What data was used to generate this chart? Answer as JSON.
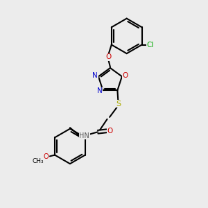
{
  "bg_color": "#ececec",
  "bond_color": "#000000",
  "N_color": "#0000cc",
  "O_color": "#cc0000",
  "S_color": "#aaaa00",
  "Cl_color": "#00aa00",
  "H_color": "#555555",
  "figsize": [
    3.0,
    3.0
  ],
  "dpi": 100,
  "xlim": [
    0,
    10
  ],
  "ylim": [
    0,
    10
  ]
}
